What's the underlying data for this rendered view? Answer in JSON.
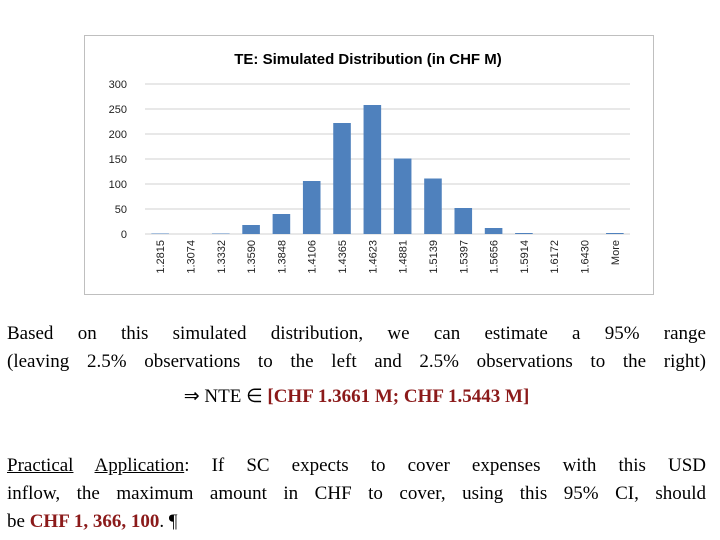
{
  "chart_data": {
    "type": "bar",
    "title": "TE: Simulated Distribution (in CHF M)",
    "categories": [
      "1.2815",
      "1.3074",
      "1.3332",
      "1.3590",
      "1.3848",
      "1.4106",
      "1.4365",
      "1.4623",
      "1.4881",
      "1.5139",
      "1.5397",
      "1.5656",
      "1.5914",
      "1.6172",
      "1.6430",
      "More"
    ],
    "values": [
      1,
      0,
      1,
      18,
      40,
      106,
      222,
      258,
      151,
      111,
      52,
      12,
      2,
      0,
      0,
      2
    ],
    "ylim": [
      0,
      300
    ],
    "yticks": [
      0,
      50,
      100,
      150,
      200,
      250,
      300
    ],
    "grid": true
  },
  "text": {
    "p1_line1": "Based on this simulated distribution, we can estimate a 95% range",
    "p1_line2": "(leaving 2.5% observations to the left and 2.5% observations to the right)",
    "implies": "⇒ NTE ∈",
    "interval": "[CHF 1.3661 M; CHF 1.5443 M]",
    "practical": "Practical",
    "application": "Application",
    "p2_line1_rest": ": If SC expects to cover expenses with this USD",
    "p2_line2": "inflow, the maximum amount in CHF to cover, using this 95% CI, should",
    "p2_line3_pre": "be",
    "amount": "CHF 1, 366, 100",
    "p2_line3_post": ". ¶"
  }
}
